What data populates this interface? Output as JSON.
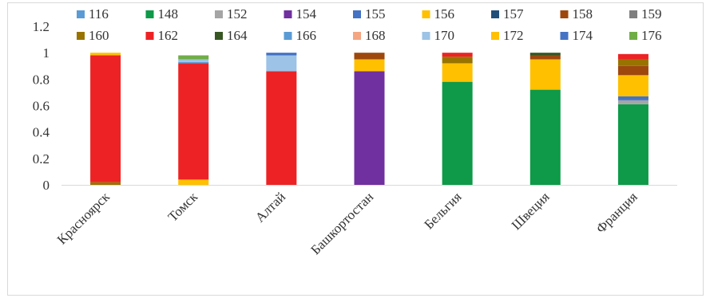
{
  "chart_data": {
    "type": "bar",
    "stacked": true,
    "ylim": [
      0,
      1.2
    ],
    "yticks": [
      "0",
      "0.2",
      "0.4",
      "0.6",
      "0.8",
      "1",
      "1.2"
    ],
    "categories": [
      "Красноярск",
      "Томск",
      "Алтай",
      "Башкортостан",
      "Бельгия",
      "Швеция",
      "Франция"
    ],
    "grid": false,
    "legend_position": "top",
    "series": [
      {
        "name": "116",
        "color": "#5b9bd5",
        "values": [
          0,
          0,
          0,
          0,
          0,
          0,
          0
        ]
      },
      {
        "name": "148",
        "color": "#0e9a48",
        "values": [
          0,
          0,
          0,
          0,
          0.78,
          0.72,
          0.61
        ]
      },
      {
        "name": "152",
        "color": "#a5a5a5",
        "values": [
          0,
          0,
          0,
          0,
          0,
          0,
          0.03
        ]
      },
      {
        "name": "154",
        "color": "#7030a0",
        "values": [
          0,
          0,
          0,
          0.86,
          0,
          0,
          0
        ]
      },
      {
        "name": "155",
        "color": "#4472c4",
        "values": [
          0,
          0,
          0,
          0,
          0,
          0,
          0.03
        ]
      },
      {
        "name": "156",
        "color": "#ffc000",
        "values": [
          0,
          0.04,
          0,
          0.09,
          0.14,
          0.23,
          0.16
        ]
      },
      {
        "name": "157",
        "color": "#1f4e79",
        "values": [
          0,
          0,
          0,
          0,
          0,
          0,
          0
        ]
      },
      {
        "name": "158",
        "color": "#9e480e",
        "values": [
          0,
          0,
          0,
          0.05,
          0,
          0.03,
          0.07
        ]
      },
      {
        "name": "159",
        "color": "#7f7f7f",
        "values": [
          0,
          0,
          0,
          0,
          0,
          0,
          0
        ]
      },
      {
        "name": "160",
        "color": "#997300",
        "values": [
          0.02,
          0,
          0,
          0,
          0.05,
          0,
          0.05
        ]
      },
      {
        "name": "162",
        "color": "#ed2224",
        "values": [
          0.96,
          0.88,
          0.86,
          0,
          0.03,
          0,
          0.04
        ]
      },
      {
        "name": "164",
        "color": "#375623",
        "values": [
          0,
          0,
          0,
          0,
          0,
          0.02,
          0
        ]
      },
      {
        "name": "166",
        "color": "#5b9bd5",
        "values": [
          0,
          0.01,
          0,
          0,
          0,
          0,
          0
        ]
      },
      {
        "name": "168",
        "color": "#f4a582",
        "values": [
          0,
          0,
          0,
          0,
          0,
          0,
          0
        ]
      },
      {
        "name": "170",
        "color": "#9dc3e6",
        "values": [
          0,
          0.02,
          0.12,
          0,
          0,
          0,
          0
        ]
      },
      {
        "name": "172",
        "color": "#ffc000",
        "values": [
          0.02,
          0,
          0,
          0,
          0,
          0,
          0
        ]
      },
      {
        "name": "174",
        "color": "#4472c4",
        "values": [
          0,
          0,
          0.02,
          0,
          0,
          0,
          0
        ]
      },
      {
        "name": "176",
        "color": "#70ad47",
        "values": [
          0,
          0.03,
          0,
          0,
          0,
          0,
          0
        ]
      }
    ]
  }
}
